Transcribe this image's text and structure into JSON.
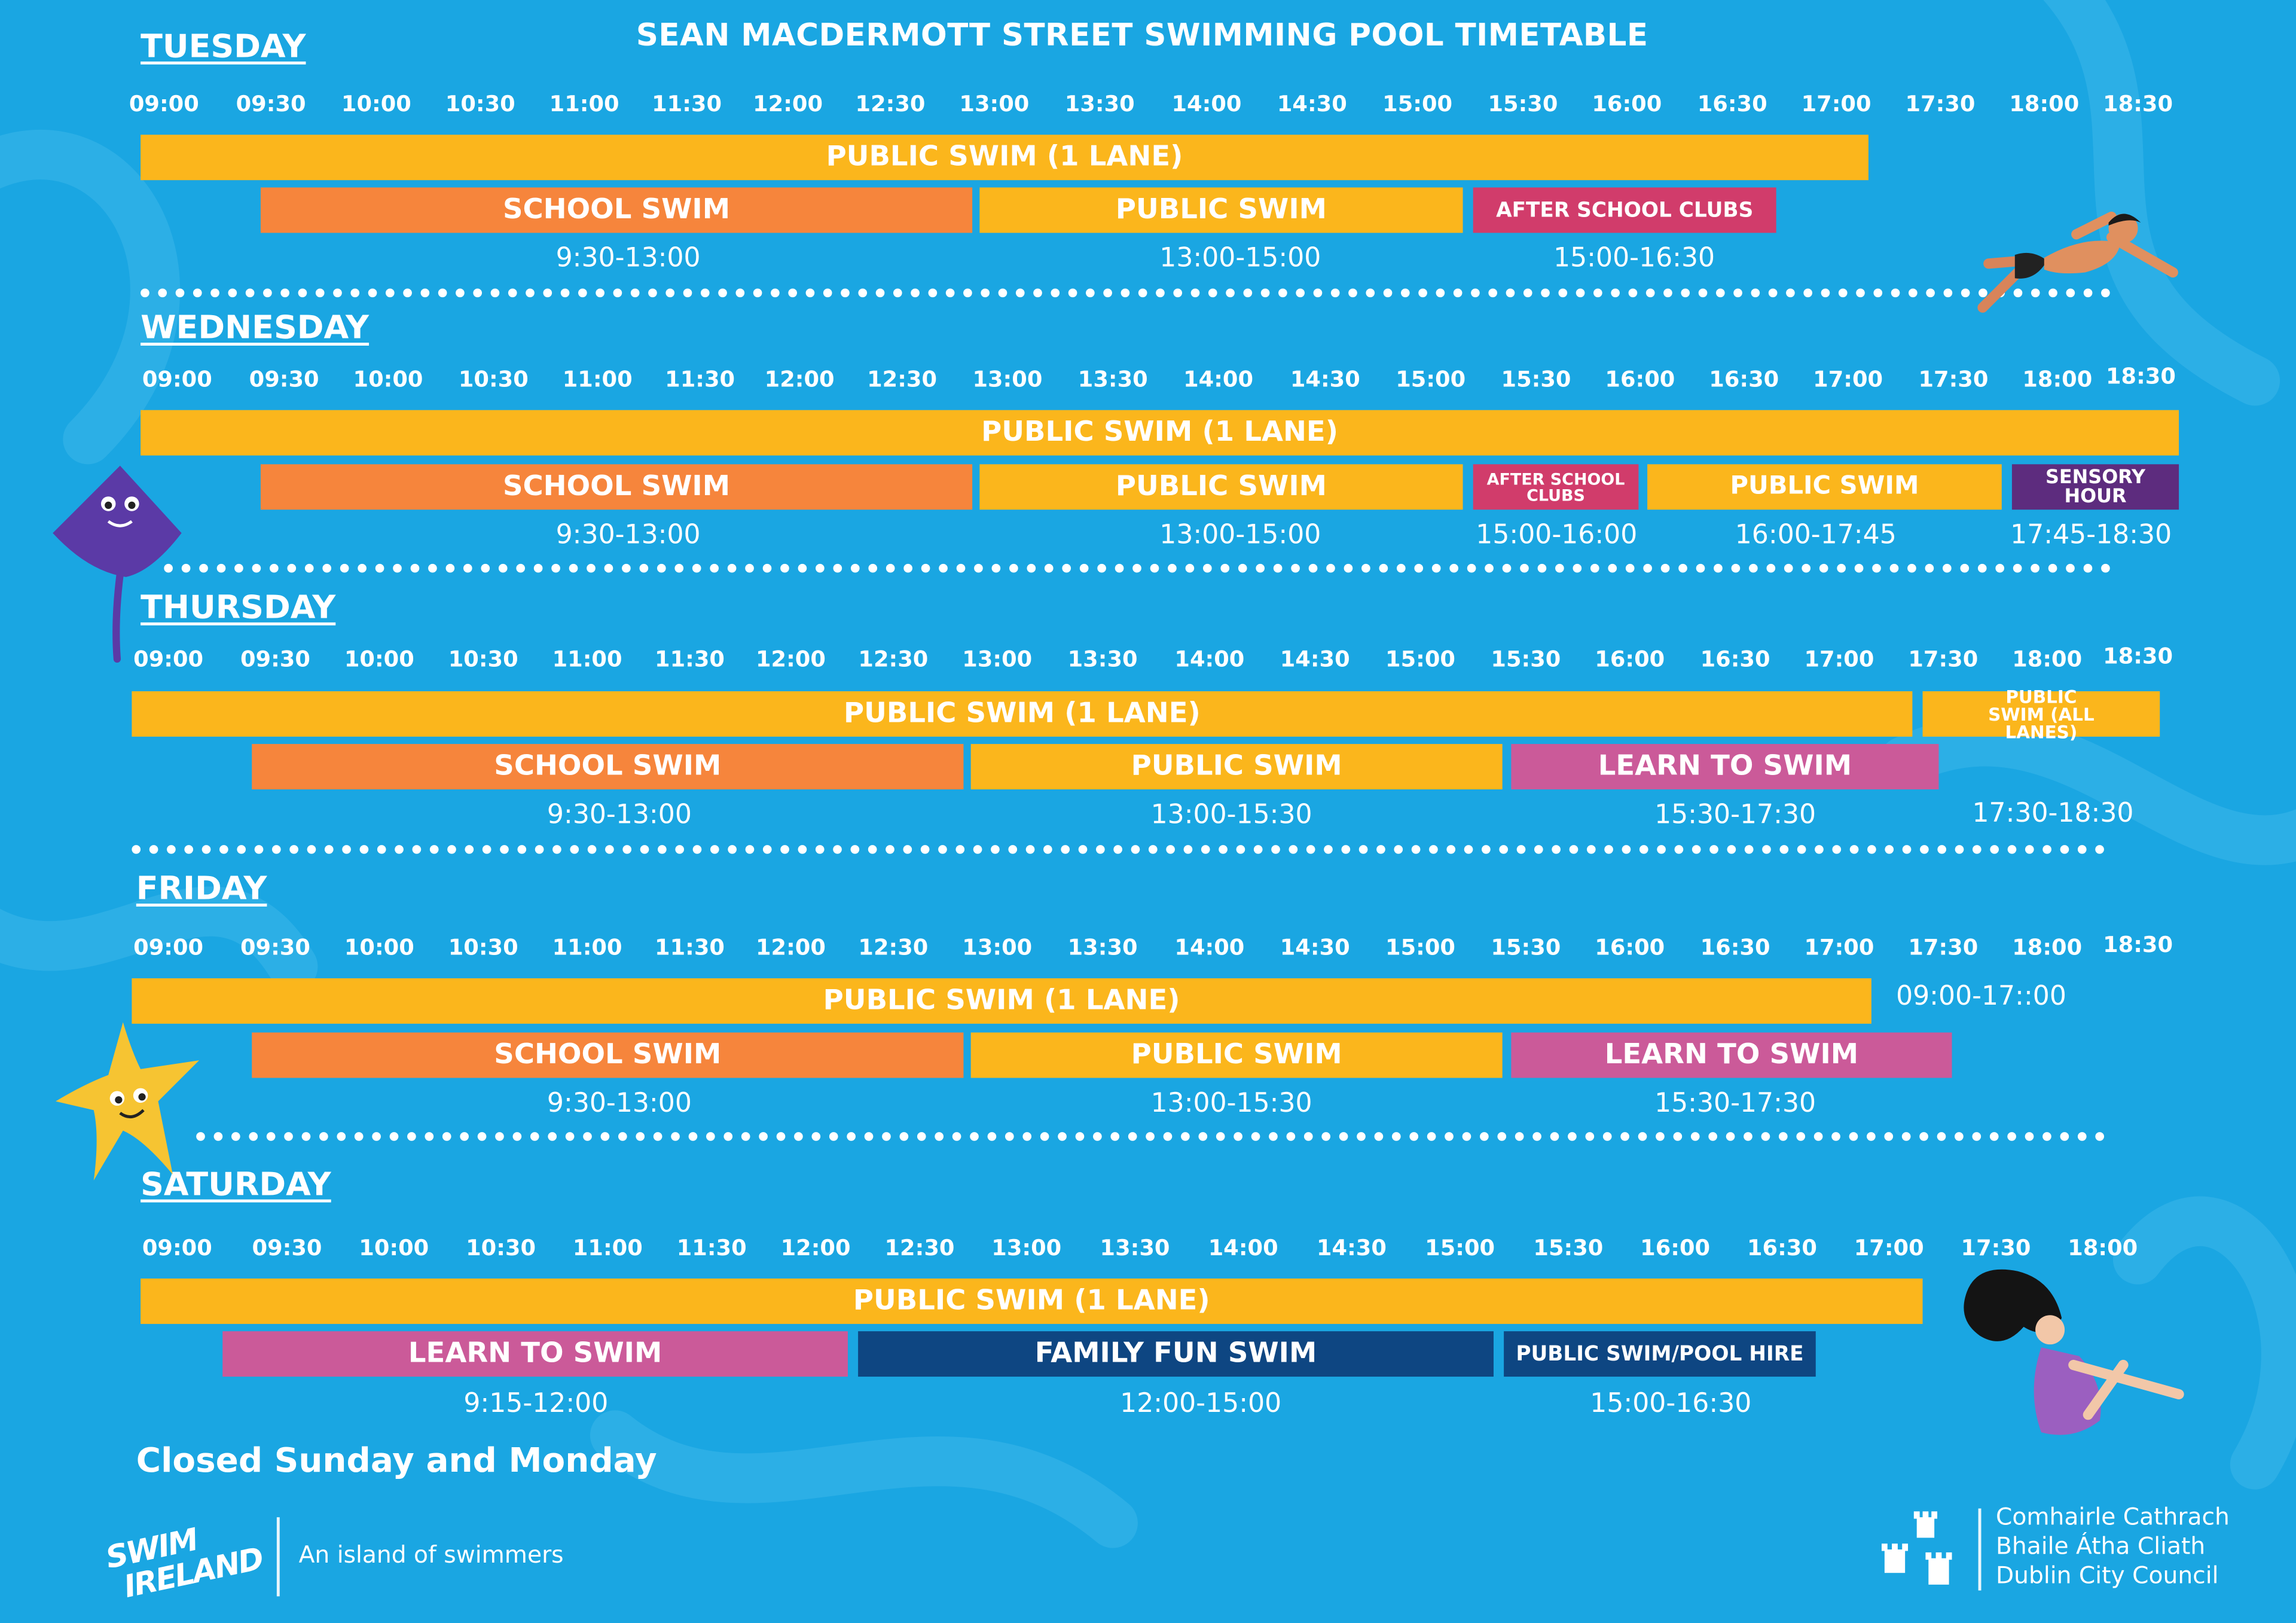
{
  "title": "SEAN MACDERMOTT STREET SWIMMING POOL TIMETABLE",
  "days": [
    {
      "name": "TUESDAY",
      "times": [
        "09:00",
        "09:30",
        "10:00",
        "10:30",
        "11:00",
        "11:30",
        "12:00",
        "12:30",
        "13:00",
        "13:30",
        "14:00",
        "14:30",
        "15:00",
        "15:30",
        "16:00",
        "16:30",
        "17:00",
        "17:30",
        "18:00",
        "18:30"
      ],
      "sessions": [
        {
          "label": "PUBLIC SWIM (1 LANE)",
          "color": "#fbb61c",
          "row": 1
        },
        {
          "label": "SCHOOL SWIM",
          "color": "#f6853c",
          "row": 2
        },
        {
          "label": "PUBLIC SWIM",
          "color": "#fbb61c",
          "row": 2
        },
        {
          "label": "AFTER SCHOOL CLUBS",
          "color": "#d13c6b",
          "row": 2
        }
      ],
      "ranges": [
        "9:30-13:00",
        "13:00-15:00",
        "15:00-16:30"
      ]
    },
    {
      "name": "WEDNESDAY",
      "times": [
        "09:00",
        "09:30",
        "10:00",
        "10:30",
        "11:00",
        "11:30",
        "12:00",
        "12:30",
        "13:00",
        "13:30",
        "14:00",
        "14:30",
        "15:00",
        "15:30",
        "16:00",
        "16:30",
        "17:00",
        "17:30",
        "18:00",
        "18:30"
      ],
      "sessions": [
        {
          "label": "PUBLIC SWIM (1 LANE)",
          "color": "#fbb61c",
          "row": 1
        },
        {
          "label": "SCHOOL SWIM",
          "color": "#f6853c",
          "row": 2
        },
        {
          "label": "PUBLIC SWIM",
          "color": "#fbb61c",
          "row": 2
        },
        {
          "label": "AFTER SCHOOL CLUBS",
          "color": "#d13c6b",
          "row": 2
        },
        {
          "label": "PUBLIC SWIM",
          "color": "#fbb61c",
          "row": 2
        },
        {
          "label": "SENSORY HOUR",
          "color": "#5d2c7e",
          "row": 2
        }
      ],
      "ranges": [
        "9:30-13:00",
        "13:00-15:00",
        "15:00-16:00",
        "16:00-17:45",
        "17:45-18:30"
      ]
    },
    {
      "name": "THURSDAY",
      "times": [
        "09:00",
        "09:30",
        "10:00",
        "10:30",
        "11:00",
        "11:30",
        "12:00",
        "12:30",
        "13:00",
        "13:30",
        "14:00",
        "14:30",
        "15:00",
        "15:30",
        "16:00",
        "16:30",
        "17:00",
        "17:30",
        "18:00",
        "18:30"
      ],
      "sessions": [
        {
          "label": "PUBLIC SWIM (1 LANE)",
          "color": "#fbb61c",
          "row": 1
        },
        {
          "label": "PUBLIC SWIM (ALL LANES)",
          "color": "#fbb61c",
          "row": 1
        },
        {
          "label": "SCHOOL SWIM",
          "color": "#f6853c",
          "row": 2
        },
        {
          "label": "PUBLIC SWIM",
          "color": "#fbb61c",
          "row": 2
        },
        {
          "label": "LEARN TO SWIM",
          "color": "#cb5a99",
          "row": 2
        }
      ],
      "ranges": [
        "9:30-13:00",
        "13:00-15:30",
        "15:30-17:30",
        "17:30-18:30"
      ]
    },
    {
      "name": "FRIDAY",
      "times": [
        "09:00",
        "09:30",
        "10:00",
        "10:30",
        "11:00",
        "11:30",
        "12:00",
        "12:30",
        "13:00",
        "13:30",
        "14:00",
        "14:30",
        "15:00",
        "15:30",
        "16:00",
        "16:30",
        "17:00",
        "17:30",
        "18:00",
        "18:30"
      ],
      "sessions": [
        {
          "label": "PUBLIC SWIM (1 LANE)",
          "color": "#fbb61c",
          "row": 1
        },
        {
          "label": "SCHOOL SWIM",
          "color": "#f6853c",
          "row": 2
        },
        {
          "label": "PUBLIC SWIM",
          "color": "#fbb61c",
          "row": 2
        },
        {
          "label": "LEARN TO SWIM",
          "color": "#cb5a99",
          "row": 2
        }
      ],
      "ranges": [
        "09:00-17::00",
        "9:30-13:00",
        "13:00-15:30",
        "15:30-17:30"
      ]
    },
    {
      "name": "SATURDAY",
      "times": [
        "09:00",
        "09:30",
        "10:00",
        "10:30",
        "11:00",
        "11:30",
        "12:00",
        "12:30",
        "13:00",
        "13:30",
        "14:00",
        "14:30",
        "15:00",
        "15:30",
        "16:00",
        "16:30",
        "17:00",
        "17:30",
        "18:00"
      ],
      "sessions": [
        {
          "label": "PUBLIC SWIM (1 LANE)",
          "color": "#fbb61c",
          "row": 1
        },
        {
          "label": "LEARN TO SWIM",
          "color": "#cb5a99",
          "row": 2
        },
        {
          "label": "FAMILY FUN SWIM",
          "color": "#0e4682",
          "row": 2
        },
        {
          "label": "PUBLIC SWIM/POOL HIRE",
          "color": "#0e4682",
          "row": 2
        }
      ],
      "ranges": [
        "9:15-12:00",
        "12:00-15:00",
        "15:00-16:30"
      ]
    }
  ],
  "footer": {
    "closed_note": "Closed Sunday and Monday",
    "swim_ireland_logo": "SWIM IRELAND",
    "tagline": "An island of swimmers",
    "council_lines": [
      "Comhairle Cathrach",
      "Bhaile Átha Cliath",
      "Dublin City Council"
    ],
    "council_icon": "three-castles-icon"
  },
  "colors": {
    "background": "#1aa6e2",
    "public_swim": "#fbb61c",
    "school_swim": "#f6853c",
    "after_school_clubs": "#d13c6b",
    "sensory_hour": "#5d2c7e",
    "learn_to_swim": "#cb5a99",
    "family_fun_swim": "#0e4682"
  },
  "decorations": [
    "swimmer-icon",
    "stingray-icon",
    "starfish-icon",
    "diver-icon"
  ]
}
